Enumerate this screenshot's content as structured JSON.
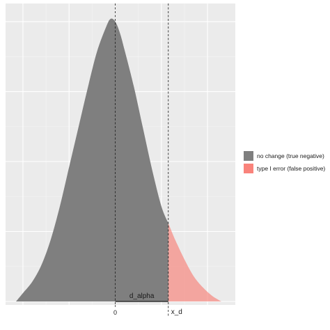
{
  "chart_data": {
    "type": "area",
    "title": "",
    "xlabel": "",
    "ylabel": "",
    "xlim": [
      -4.3,
      4.6
    ],
    "ylim": [
      0,
      1.05
    ],
    "x_tick_labels": [
      {
        "x": 0,
        "label": "0"
      }
    ],
    "grid": true,
    "legend_position": "right",
    "critical_x": 2.3,
    "reference_x": 0,
    "series": [
      {
        "name": "no change (true negative)",
        "color": "#7f7f7f",
        "x": [
          -4.3,
          -4.0,
          -3.6,
          -3.2,
          -2.8,
          -2.4,
          -2.0,
          -1.6,
          -1.2,
          -0.8,
          -0.4,
          -0.2,
          0,
          0.2,
          0.4,
          0.8,
          1.2,
          1.6,
          2.0,
          2.3
        ],
        "y": [
          0.0,
          0.03,
          0.07,
          0.13,
          0.22,
          0.34,
          0.48,
          0.62,
          0.76,
          0.89,
          0.98,
          1.01,
          1.0,
          0.96,
          0.9,
          0.77,
          0.62,
          0.47,
          0.34,
          0.28
        ]
      },
      {
        "name": "type I error (false positive)",
        "color": "#f8766d",
        "x": [
          2.3,
          2.6,
          3.0,
          3.4,
          3.8,
          4.2,
          4.6
        ],
        "y": [
          0.28,
          0.22,
          0.15,
          0.09,
          0.05,
          0.02,
          0.0
        ]
      }
    ],
    "annotations": [
      {
        "label": "d_alpha",
        "x_from": 0,
        "x_to": 2.3
      },
      {
        "label": "x_d",
        "x": 2.3
      }
    ]
  }
}
